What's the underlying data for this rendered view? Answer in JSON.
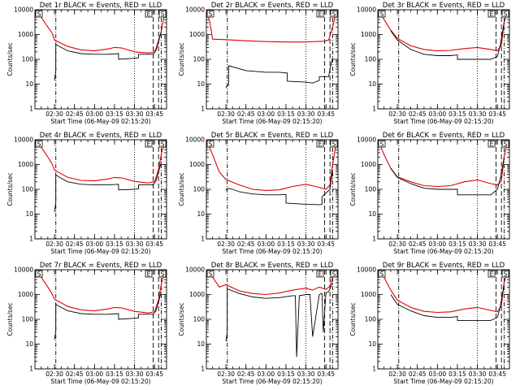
{
  "chart_data": [
    {
      "type": "line",
      "title": "Det 1r BLACK = Events, RED = LLD",
      "xlabel": "Start Time (06-May-09 02:15:20)",
      "ylabel": "Counts/sec",
      "x_ticks": [
        "02:30",
        "02:45",
        "03:00",
        "03:15",
        "03:30",
        "03:45"
      ],
      "y_ticks": [
        "1",
        "10",
        "100",
        "1000",
        "10000"
      ],
      "xlim": [
        "02:15:20",
        "03:54"
      ],
      "ylim": [
        1,
        10000
      ],
      "yscale": "log",
      "marker_labels": [
        "S",
        "E",
        "S"
      ],
      "series": [
        {
          "color": "#e00000",
          "x": [
            "02:15:20",
            "02:20",
            "02:25",
            "02:28",
            "02:29",
            "02:30",
            "02:40",
            "02:50",
            "03:00",
            "03:10",
            "03:15",
            "03:20",
            "03:30",
            "03:40",
            "03:44",
            "03:46",
            "03:50",
            "03:53"
          ],
          "y": [
            10000,
            5000,
            2000,
            1200,
            900,
            600,
            330,
            240,
            220,
            260,
            300,
            290,
            200,
            180,
            190,
            260,
            1300,
            10000
          ]
        },
        {
          "color": "#000000",
          "x": [
            "02:30",
            "02:31",
            "02:31",
            "02:35",
            "02:40",
            "02:50",
            "03:00",
            "03:10",
            "03:18",
            "03:18",
            "03:30",
            "03:33",
            "03:33",
            "03:44",
            "03:46",
            "03:48",
            "03:50"
          ],
          "y": [
            14,
            35,
            400,
            300,
            220,
            170,
            160,
            160,
            170,
            100,
            110,
            115,
            160,
            160,
            220,
            500,
            1300
          ]
        }
      ]
    },
    {
      "type": "line",
      "title": "Det 2r BLACK = Events, RED = LLD",
      "xlabel": "Start Time (06-May-09 02:15:20)",
      "ylabel": "Counts/sec",
      "x_ticks": [
        "02:30",
        "02:45",
        "03:00",
        "03:15",
        "03:30",
        "03:45"
      ],
      "y_ticks": [
        "1",
        "10",
        "100",
        "1000",
        "10000"
      ],
      "xlim": [
        "02:15:20",
        "03:54"
      ],
      "ylim": [
        1,
        10000
      ],
      "yscale": "log",
      "marker_labels": [
        "S",
        "E",
        "S"
      ],
      "series": [
        {
          "color": "#e00000",
          "x": [
            "02:15:20",
            "02:18",
            "02:20",
            "02:30",
            "02:45",
            "03:00",
            "03:15",
            "03:30",
            "03:44",
            "03:47",
            "03:50",
            "03:53"
          ],
          "y": [
            10000,
            3000,
            650,
            620,
            560,
            520,
            500,
            500,
            540,
            600,
            2000,
            10000
          ]
        },
        {
          "color": "#000000",
          "x": [
            "02:30",
            "02:31",
            "02:31",
            "02:32",
            "02:32",
            "02:45",
            "03:00",
            "03:10",
            "03:16",
            "03:16",
            "03:30",
            "03:35",
            "03:40",
            "03:40",
            "03:47",
            "03:48",
            "03:50"
          ],
          "y": [
            7,
            9,
            9,
            9,
            55,
            35,
            30,
            30,
            28,
            13,
            12,
            11,
            14,
            20,
            20,
            40,
            120
          ]
        }
      ]
    },
    {
      "type": "line",
      "title": "Det 3r BLACK = Events, RED = LLD",
      "xlabel": "Start Time (06-May-09 02:15:20)",
      "ylabel": "Counts/sec",
      "x_ticks": [
        "02:30",
        "02:45",
        "03:00",
        "03:15",
        "03:30",
        "03:45"
      ],
      "y_ticks": [
        "1",
        "10",
        "100",
        "1000",
        "10000"
      ],
      "xlim": [
        "02:15:20",
        "03:54"
      ],
      "ylim": [
        1,
        10000
      ],
      "yscale": "log",
      "marker_labels": [
        "S",
        "E",
        "S"
      ],
      "series": [
        {
          "color": "#e00000",
          "x": [
            "02:15:20",
            "02:20",
            "02:25",
            "02:30",
            "02:40",
            "02:50",
            "03:00",
            "03:10",
            "03:20",
            "03:30",
            "03:40",
            "03:45",
            "03:48",
            "03:50",
            "03:53"
          ],
          "y": [
            10000,
            4000,
            1500,
            700,
            350,
            250,
            220,
            230,
            270,
            300,
            250,
            220,
            380,
            3000,
            10000
          ]
        },
        {
          "color": "#000000",
          "x": [
            "02:25",
            "02:30",
            "02:40",
            "02:50",
            "03:00",
            "03:10",
            "03:15",
            "03:15",
            "03:30",
            "03:40",
            "03:45",
            "03:47",
            "03:50"
          ],
          "y": [
            1400,
            600,
            250,
            160,
            140,
            140,
            150,
            100,
            100,
            100,
            130,
            350,
            3000
          ]
        }
      ]
    },
    {
      "type": "line",
      "title": "Det 4r BLACK = Events, RED = LLD",
      "xlabel": "Start Time (06-May-09 02:15:20)",
      "ylabel": "Counts/sec",
      "x_ticks": [
        "02:30",
        "02:45",
        "03:00",
        "03:15",
        "03:30",
        "03:45"
      ],
      "y_ticks": [
        "1",
        "10",
        "100",
        "1000",
        "10000"
      ],
      "xlim": [
        "02:15:20",
        "03:54"
      ],
      "ylim": [
        1,
        10000
      ],
      "yscale": "log",
      "marker_labels": [
        "S",
        "E",
        "S"
      ],
      "series": [
        {
          "color": "#e00000",
          "x": [
            "02:15:20",
            "02:20",
            "02:25",
            "02:28",
            "02:30",
            "02:40",
            "02:50",
            "03:00",
            "03:10",
            "03:15",
            "03:20",
            "03:30",
            "03:40",
            "03:45",
            "03:48",
            "03:50",
            "03:53"
          ],
          "y": [
            10000,
            5000,
            2000,
            1100,
            600,
            300,
            230,
            220,
            260,
            300,
            290,
            210,
            180,
            200,
            600,
            2500,
            10000
          ]
        },
        {
          "color": "#000000",
          "x": [
            "02:30",
            "02:31",
            "02:31",
            "02:35",
            "02:40",
            "02:50",
            "03:00",
            "03:10",
            "03:18",
            "03:18",
            "03:30",
            "03:33",
            "03:33",
            "03:44",
            "03:46",
            "03:48",
            "03:50"
          ],
          "y": [
            12,
            30,
            380,
            280,
            200,
            160,
            150,
            150,
            160,
            95,
            100,
            105,
            150,
            150,
            220,
            500,
            1200
          ]
        }
      ]
    },
    {
      "type": "line",
      "title": "Det 5r BLACK = Events, RED = LLD",
      "xlabel": "Start Time (06-May-09 02:15:20)",
      "ylabel": "Counts/sec",
      "x_ticks": [
        "02:30",
        "02:45",
        "03:00",
        "03:15",
        "03:30",
        "03:45"
      ],
      "y_ticks": [
        "1",
        "10",
        "100",
        "1000",
        "10000"
      ],
      "xlim": [
        "02:15:20",
        "03:54"
      ],
      "ylim": [
        1,
        10000
      ],
      "yscale": "log",
      "marker_labels": [
        "S",
        "E",
        "S"
      ],
      "series": [
        {
          "color": "#e00000",
          "x": [
            "02:15:20",
            "02:20",
            "02:25",
            "02:30",
            "02:40",
            "02:50",
            "03:00",
            "03:10",
            "03:20",
            "03:30",
            "03:40",
            "03:45",
            "03:48",
            "03:50",
            "03:53"
          ],
          "y": [
            10000,
            2500,
            500,
            250,
            150,
            100,
            90,
            95,
            130,
            160,
            120,
            100,
            150,
            1000,
            10000
          ]
        },
        {
          "color": "#000000",
          "x": [
            "02:30",
            "02:31",
            "02:35",
            "02:40",
            "02:50",
            "03:00",
            "03:10",
            "03:15",
            "03:15",
            "03:30",
            "03:40",
            "03:42",
            "03:42",
            "03:48",
            "03:50"
          ],
          "y": [
            90,
            110,
            100,
            80,
            65,
            60,
            60,
            62,
            28,
            25,
            24,
            25,
            50,
            100,
            600
          ]
        }
      ]
    },
    {
      "type": "line",
      "title": "Det 6r BLACK = Events, RED = LLD",
      "xlabel": "Start Time (06-May-09 02:15:20)",
      "ylabel": "Counts/sec",
      "x_ticks": [
        "02:30",
        "02:45",
        "03:00",
        "03:15",
        "03:30",
        "03:45"
      ],
      "y_ticks": [
        "1",
        "10",
        "100",
        "1000",
        "10000"
      ],
      "xlim": [
        "02:15:20",
        "03:54"
      ],
      "ylim": [
        1,
        10000
      ],
      "yscale": "log",
      "marker_labels": [
        "S",
        "E",
        "S"
      ],
      "series": [
        {
          "color": "#e00000",
          "x": [
            "02:15:20",
            "02:20",
            "02:25",
            "02:30",
            "02:40",
            "02:50",
            "03:00",
            "03:10",
            "03:20",
            "03:30",
            "03:40",
            "03:45",
            "03:48",
            "03:50",
            "03:53"
          ],
          "y": [
            10000,
            2500,
            700,
            320,
            200,
            140,
            130,
            140,
            200,
            240,
            170,
            150,
            220,
            2000,
            10000
          ]
        },
        {
          "color": "#000000",
          "x": [
            "02:25",
            "02:30",
            "02:40",
            "02:50",
            "03:00",
            "03:10",
            "03:15",
            "03:15",
            "03:30",
            "03:40",
            "03:45",
            "03:47",
            "03:50"
          ],
          "y": [
            700,
            300,
            170,
            110,
            100,
            100,
            100,
            60,
            60,
            60,
            100,
            250,
            1800
          ]
        }
      ]
    },
    {
      "type": "line",
      "title": "Det 7r BLACK = Events, RED = LLD",
      "xlabel": "Start Time (06-May-09 02:15:20)",
      "ylabel": "Counts/sec",
      "x_ticks": [
        "02:30",
        "02:45",
        "03:00",
        "03:15",
        "03:30",
        "03:45"
      ],
      "y_ticks": [
        "1",
        "10",
        "100",
        "1000",
        "10000"
      ],
      "xlim": [
        "02:15:20",
        "03:54"
      ],
      "ylim": [
        1,
        10000
      ],
      "yscale": "log",
      "marker_labels": [
        "S",
        "E",
        "S"
      ],
      "series": [
        {
          "color": "#e00000",
          "x": [
            "02:15:20",
            "02:20",
            "02:25",
            "02:28",
            "02:30",
            "02:40",
            "02:50",
            "03:00",
            "03:10",
            "03:15",
            "03:20",
            "03:30",
            "03:40",
            "03:45",
            "03:48",
            "03:50",
            "03:53"
          ],
          "y": [
            10000,
            5000,
            2000,
            1100,
            650,
            330,
            240,
            220,
            260,
            300,
            290,
            210,
            180,
            200,
            600,
            2500,
            10000
          ]
        },
        {
          "color": "#000000",
          "x": [
            "02:30",
            "02:31",
            "02:31",
            "02:35",
            "02:40",
            "02:50",
            "03:00",
            "03:10",
            "03:18",
            "03:18",
            "03:30",
            "03:33",
            "03:33",
            "03:44",
            "03:46",
            "03:48",
            "03:50"
          ],
          "y": [
            15,
            35,
            400,
            300,
            220,
            170,
            160,
            160,
            170,
            100,
            110,
            115,
            160,
            160,
            220,
            500,
            1300
          ]
        }
      ]
    },
    {
      "type": "line",
      "title": "Det 8r BLACK = Events, RED = LLD",
      "xlabel": "Start Time (06-May-09 02:15:20)",
      "ylabel": "Counts/sec",
      "x_ticks": [
        "02:30",
        "02:45",
        "03:00",
        "03:15",
        "03:30",
        "03:45"
      ],
      "y_ticks": [
        "1",
        "10",
        "100",
        "1000",
        "10000"
      ],
      "xlim": [
        "02:15:20",
        "03:54"
      ],
      "ylim": [
        1,
        10000
      ],
      "yscale": "log",
      "marker_labels": [
        "S",
        "E",
        "S"
      ],
      "series": [
        {
          "color": "#e00000",
          "x": [
            "02:15:20",
            "02:20",
            "02:25",
            "02:30",
            "02:40",
            "02:50",
            "03:00",
            "03:10",
            "03:20",
            "03:30",
            "03:35",
            "03:40",
            "03:45",
            "03:48",
            "03:50",
            "03:53"
          ],
          "y": [
            10000,
            5000,
            2000,
            2500,
            1400,
            1100,
            1000,
            1150,
            1500,
            1800,
            1500,
            2000,
            1600,
            2200,
            5000,
            10000
          ]
        },
        {
          "color": "#000000",
          "x": [
            "02:30",
            "02:31",
            "02:31",
            "02:40",
            "02:50",
            "03:00",
            "03:10",
            "03:20",
            "03:22",
            "03:23",
            "03:25",
            "03:30",
            "03:32",
            "03:33",
            "03:35",
            "03:40",
            "03:42",
            "03:43",
            "03:45",
            "03:47",
            "03:50"
          ],
          "y": [
            13,
            30,
            1700,
            1100,
            800,
            700,
            750,
            900,
            900,
            3,
            900,
            1000,
            1000,
            1000,
            20,
            1000,
            1100,
            30,
            1200,
            1300,
            3000
          ]
        }
      ]
    },
    {
      "type": "line",
      "title": "Det 9r BLACK = Events, RED = LLD",
      "xlabel": "Start Time (06-May-09 02:15:20)",
      "ylabel": "Counts/sec",
      "x_ticks": [
        "02:30",
        "02:45",
        "03:00",
        "03:15",
        "03:30",
        "03:45"
      ],
      "y_ticks": [
        "1",
        "10",
        "100",
        "1000",
        "10000"
      ],
      "xlim": [
        "02:15:20",
        "03:54"
      ],
      "ylim": [
        1,
        10000
      ],
      "yscale": "log",
      "marker_labels": [
        "S",
        "E",
        "S"
      ],
      "series": [
        {
          "color": "#e00000",
          "x": [
            "02:15:20",
            "02:20",
            "02:25",
            "02:30",
            "02:40",
            "02:50",
            "03:00",
            "03:10",
            "03:20",
            "03:30",
            "03:40",
            "03:45",
            "03:48",
            "03:50",
            "03:53"
          ],
          "y": [
            10000,
            5000,
            1500,
            600,
            300,
            210,
            190,
            200,
            260,
            300,
            230,
            200,
            350,
            3000,
            10000
          ]
        },
        {
          "color": "#000000",
          "x": [
            "02:25",
            "02:30",
            "02:40",
            "02:50",
            "03:00",
            "03:10",
            "03:15",
            "03:15",
            "03:30",
            "03:40",
            "03:45",
            "03:47",
            "03:50"
          ],
          "y": [
            1000,
            400,
            220,
            140,
            120,
            120,
            130,
            90,
            90,
            90,
            120,
            300,
            2500
          ]
        }
      ]
    }
  ]
}
